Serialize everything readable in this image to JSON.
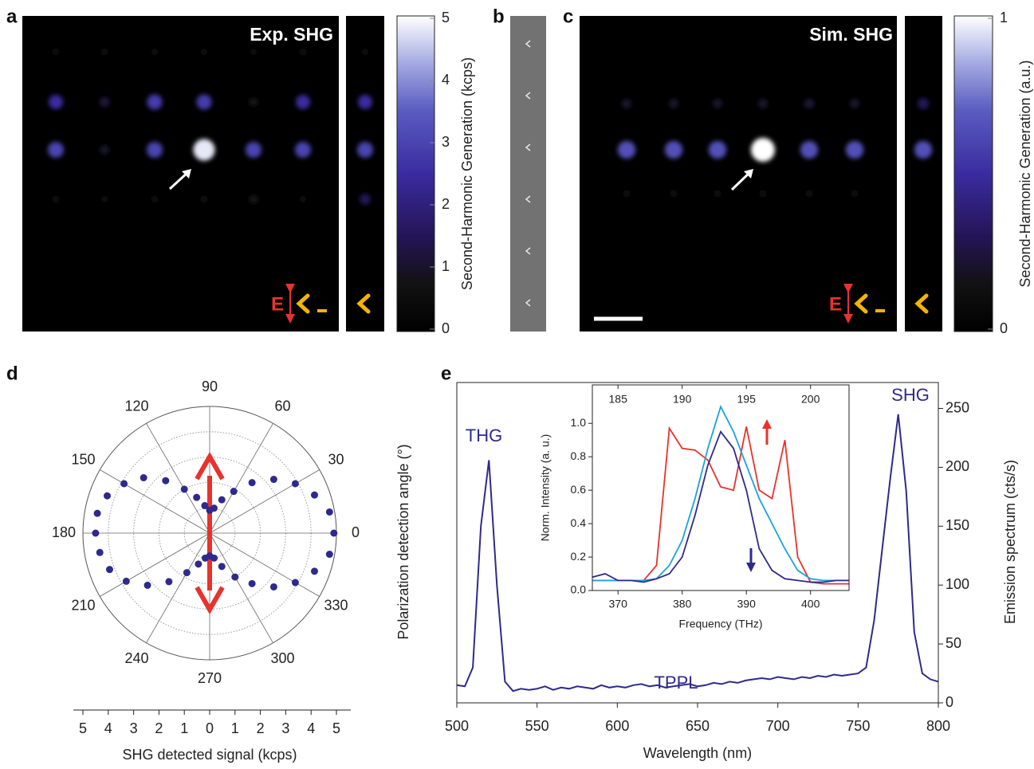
{
  "chart_data": [
    {
      "type": "heatmap",
      "panel": "a",
      "title": "Exp. SHG",
      "annotation": "E",
      "colorbar_label": "Second-Harmonic Generation (kcps)",
      "clim": [
        0,
        5
      ],
      "cticks": [
        0,
        1,
        2,
        3,
        4,
        5
      ],
      "values": [
        [
          0.4,
          0.4,
          0.3,
          0.3,
          0.3,
          0.5
        ],
        [
          2.5,
          1.2,
          2.8,
          2.8,
          0.8,
          2.5
        ],
        [
          3.0,
          1.0,
          3.0,
          4.8,
          3.0,
          3.0
        ],
        [
          0.4,
          0.3,
          0.4,
          0.5,
          0.8,
          0.3
        ]
      ],
      "side_values": [
        0.3,
        2.5,
        3.0,
        1.5
      ]
    },
    {
      "type": "image",
      "panel": "b"
    },
    {
      "type": "heatmap",
      "panel": "c",
      "title": "Sim. SHG",
      "annotation": "E",
      "colorbar_label": "Second-Harmonic Generation (a.u.)",
      "clim": [
        0,
        1
      ],
      "cticks": [
        0,
        1
      ],
      "values": [
        [
          0.2,
          0.2,
          0.2,
          0.2,
          0.22,
          0.2
        ],
        [
          0.65,
          0.65,
          0.65,
          1.0,
          0.65,
          0.65
        ],
        [
          0.08,
          0.08,
          0.08,
          0.08,
          0.08,
          0.08
        ]
      ],
      "side_values": [
        0.3,
        0.65,
        0.05
      ]
    },
    {
      "type": "polar",
      "panel": "d",
      "ylabel": "Polarization detection angle (°)",
      "xlabel": "SHG detected signal (kcps)",
      "angle_ticks": [
        0,
        30,
        60,
        90,
        120,
        150,
        180,
        210,
        240,
        270,
        300,
        330
      ],
      "rlim": [
        0,
        5
      ],
      "rticks": [
        1,
        2,
        3,
        4,
        5
      ],
      "grid": true,
      "color": "#2e2a8c",
      "xlim": [
        -5,
        5
      ],
      "xticks": [
        {
          "value": -5,
          "label": "5"
        },
        {
          "value": -4,
          "label": "4"
        },
        {
          "value": -3,
          "label": "3"
        },
        {
          "value": -2,
          "label": "2"
        },
        {
          "value": -1,
          "label": "1"
        },
        0,
        1,
        2,
        3,
        4,
        5
      ],
      "theta": [
        0,
        10,
        20,
        30,
        40,
        50,
        60,
        70,
        80,
        90,
        100,
        110,
        120,
        130,
        140,
        150,
        160,
        170,
        180,
        190,
        200,
        210,
        220,
        230,
        240,
        250,
        260,
        270,
        280,
        290,
        300,
        310,
        320,
        330,
        340,
        350
      ],
      "r": [
        4.9,
        4.8,
        4.4,
        3.9,
        3.3,
        2.6,
        1.9,
        1.4,
        1.0,
        0.9,
        1.1,
        1.5,
        2.0,
        2.7,
        3.4,
        3.9,
        4.3,
        4.5,
        4.5,
        4.4,
        4.2,
        3.8,
        3.2,
        2.5,
        1.8,
        1.3,
        1.0,
        0.9,
        1.0,
        1.4,
        2.0,
        2.6,
        3.3,
        3.9,
        4.4,
        4.8
      ]
    },
    {
      "type": "line",
      "panel": "e",
      "xlabel": "Wavelength (nm)",
      "ylabel": "Emission spectrum (cts/s)",
      "xlim": [
        500,
        800
      ],
      "xticks": [
        500,
        550,
        600,
        650,
        700,
        750,
        800
      ],
      "ylim": [
        0,
        272
      ],
      "yticks": [
        0,
        50,
        100,
        150,
        200,
        250
      ],
      "annotations": [
        "THG",
        "SHG",
        "TPPL"
      ],
      "x": [
        500,
        505,
        510,
        515,
        520,
        525,
        530,
        535,
        540,
        545,
        550,
        555,
        560,
        565,
        570,
        575,
        580,
        585,
        590,
        595,
        600,
        605,
        610,
        615,
        620,
        625,
        630,
        635,
        640,
        645,
        650,
        655,
        660,
        665,
        670,
        675,
        680,
        685,
        690,
        695,
        700,
        705,
        710,
        715,
        720,
        725,
        730,
        735,
        740,
        745,
        750,
        755,
        760,
        765,
        770,
        775,
        780,
        785,
        790,
        795,
        800
      ],
      "series": [
        {
          "color": "#2e2a8c",
          "values": [
            15,
            14,
            30,
            150,
            206,
            100,
            18,
            10,
            12,
            11,
            12,
            14,
            11,
            13,
            12,
            14,
            13,
            12,
            15,
            13,
            14,
            13,
            15,
            16,
            14,
            15,
            13,
            14,
            15,
            16,
            14,
            15,
            17,
            16,
            18,
            17,
            19,
            20,
            21,
            20,
            22,
            21,
            20,
            22,
            21,
            23,
            22,
            24,
            23,
            24,
            25,
            30,
            70,
            130,
            190,
            245,
            180,
            60,
            25,
            20,
            18
          ]
        }
      ],
      "inset": {
        "xlabel": "Frequency (THz)",
        "ylabel": "Norm. Intensity (a. u.)",
        "xlim": [
          366,
          406
        ],
        "xticks": [
          370,
          380,
          390,
          400
        ],
        "x2lim": [
          183,
          203
        ],
        "x2ticks": [
          185,
          190,
          195,
          200
        ],
        "ylim": [
          0,
          1.23
        ],
        "yticks": [
          {
            "value": 0,
            "label": "0.0"
          },
          0.2,
          0.4,
          0.6,
          0.8,
          {
            "value": 1,
            "label": "1.0"
          }
        ],
        "x": [
          366,
          368,
          370,
          372,
          374,
          376,
          378,
          380,
          382,
          384,
          386,
          388,
          390,
          392,
          394,
          396,
          398,
          400,
          402,
          404,
          406
        ],
        "series": [
          {
            "color": "#e8322d",
            "values": [
              0.06,
              0.06,
              0.06,
              0.06,
              0.06,
              0.15,
              0.97,
              0.85,
              0.84,
              0.78,
              0.62,
              0.6,
              0.98,
              0.6,
              0.55,
              0.9,
              0.2,
              0.05,
              0.04,
              0.04,
              0.04
            ]
          },
          {
            "color": "#1ba3d9",
            "values": [
              0.06,
              0.06,
              0.06,
              0.06,
              0.06,
              0.07,
              0.15,
              0.3,
              0.55,
              0.85,
              1.1,
              0.95,
              0.75,
              0.55,
              0.4,
              0.25,
              0.12,
              0.07,
              0.06,
              0.06,
              0.06
            ]
          },
          {
            "color": "#2e2a8c",
            "values": [
              0.08,
              0.1,
              0.06,
              0.06,
              0.05,
              0.07,
              0.1,
              0.2,
              0.45,
              0.75,
              0.95,
              0.85,
              0.6,
              0.25,
              0.12,
              0.07,
              0.06,
              0.05,
              0.05,
              0.06,
              0.06
            ]
          }
        ]
      }
    }
  ]
}
